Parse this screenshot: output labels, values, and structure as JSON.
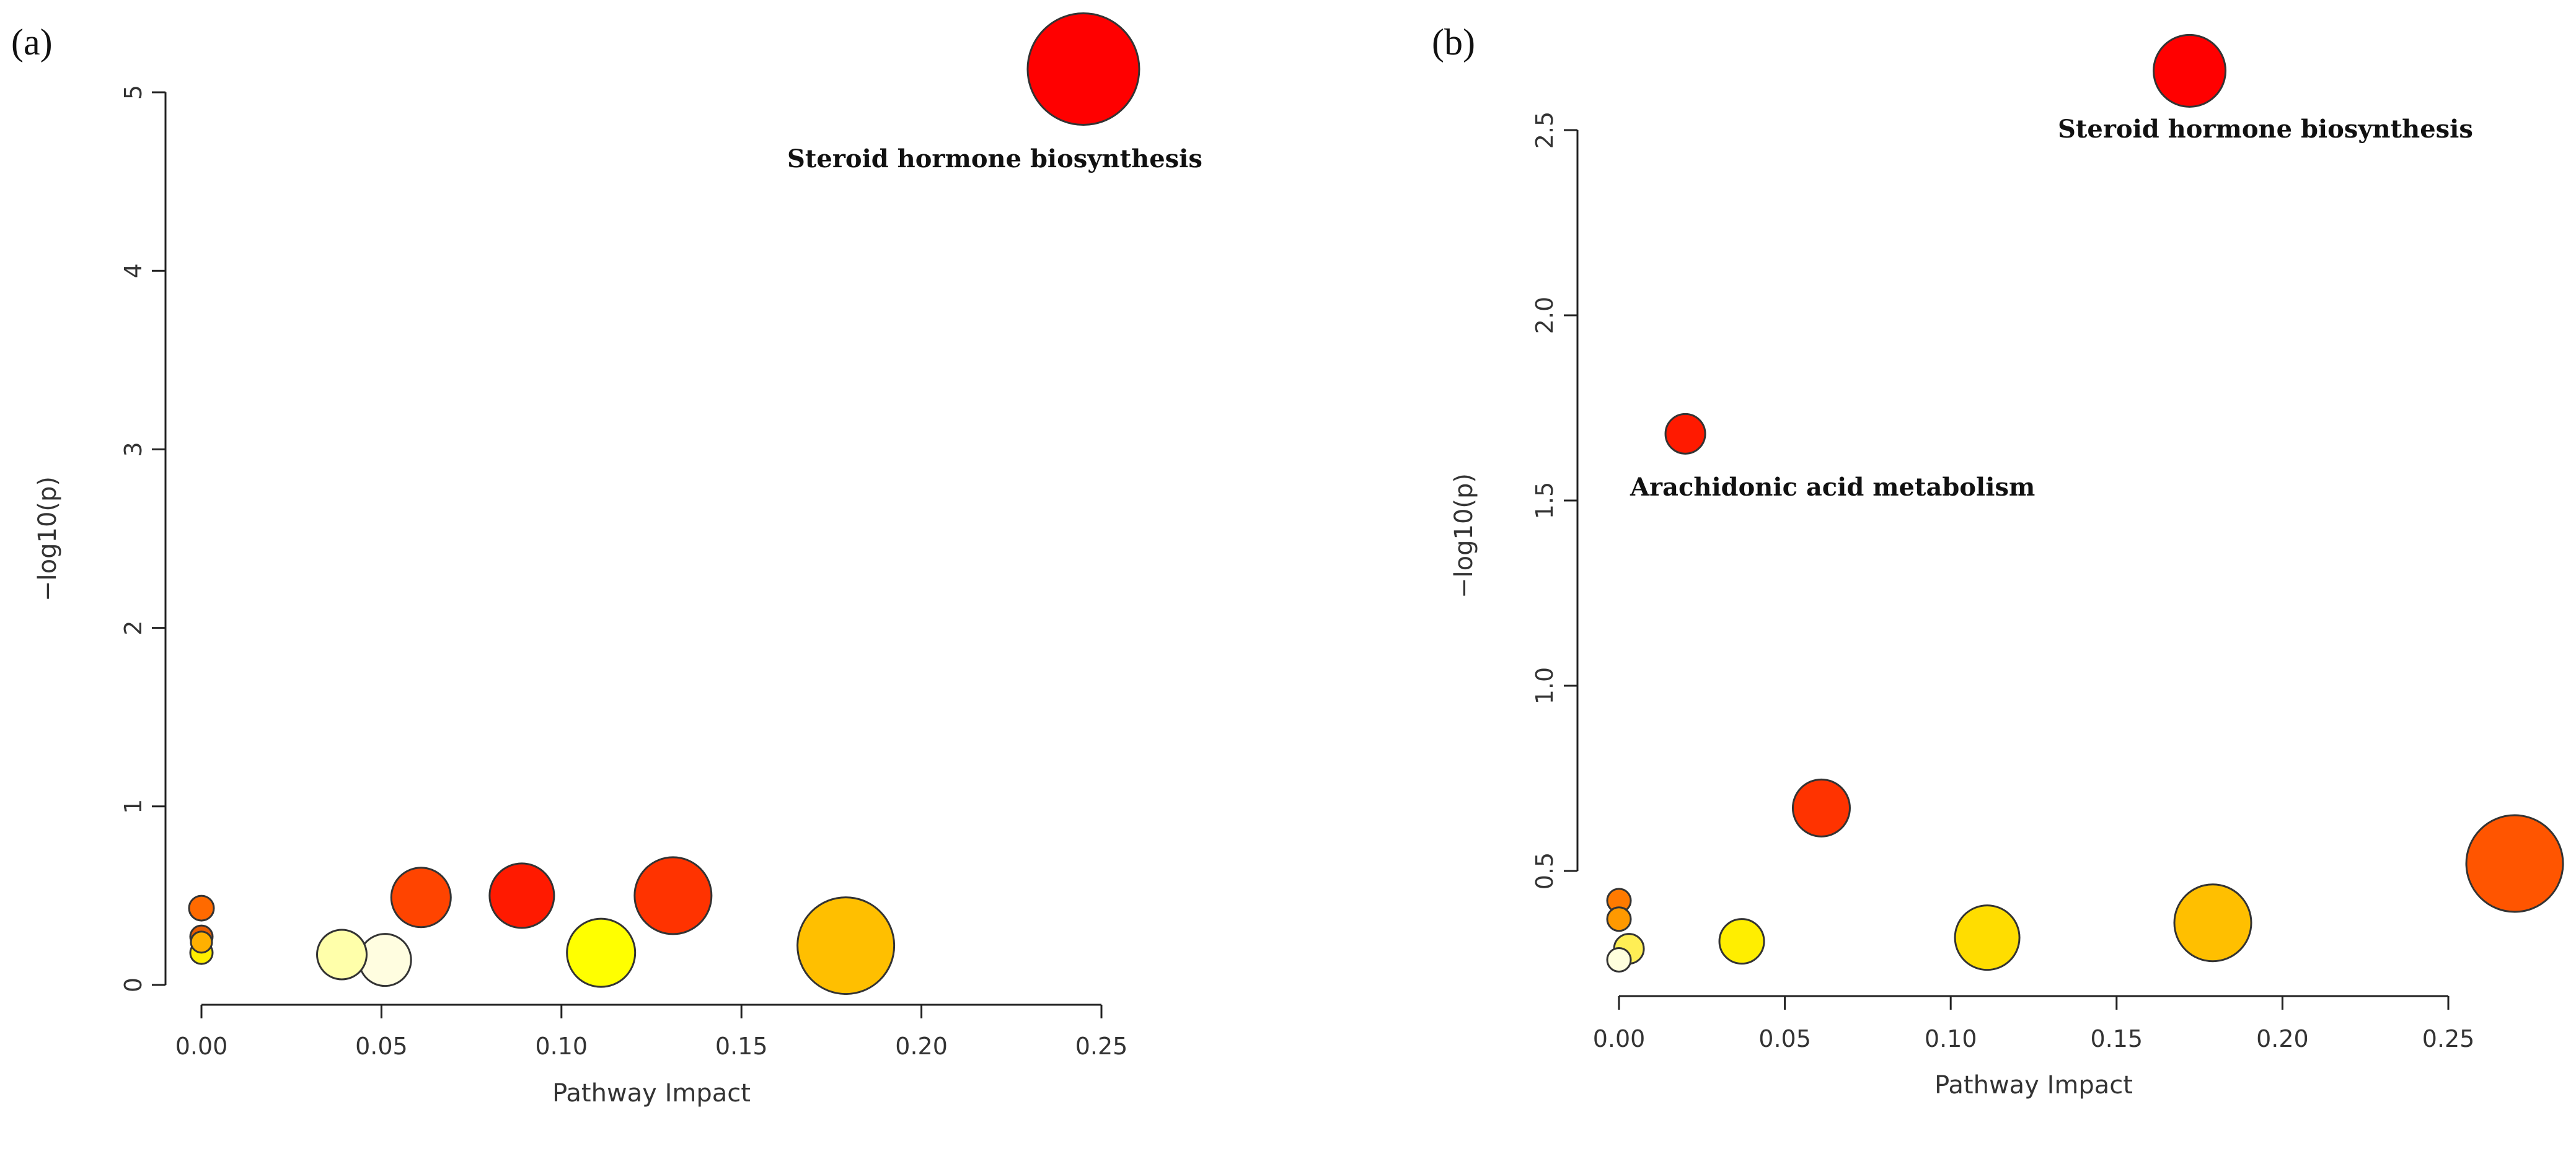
{
  "chart_data": [
    {
      "type": "scatter",
      "panel_label": "(a)",
      "xlabel": "Pathway Impact",
      "ylabel": "−log10(p)",
      "xlim": [
        0,
        0.25
      ],
      "ylim": [
        0,
        5
      ],
      "x_ticks": [
        0,
        0.05,
        0.1,
        0.15,
        0.2,
        0.25
      ],
      "x_tick_labels": [
        "0.00",
        "0.05",
        "0.10",
        "0.15",
        "0.20",
        "0.25"
      ],
      "y_ticks": [
        0,
        1,
        2,
        3,
        4,
        5
      ],
      "y_tick_labels": [
        "0",
        "1",
        "2",
        "3",
        "4",
        "5"
      ],
      "points": [
        {
          "x": 0.245,
          "y": 5.13,
          "size": 90,
          "color": "#ff0000",
          "label": "Steroid hormone biosynthesis"
        },
        {
          "x": 0.0,
          "y": 0.43,
          "size": 20,
          "color": "#ff6a00"
        },
        {
          "x": 0.0,
          "y": 0.27,
          "size": 18,
          "color": "#e65c00"
        },
        {
          "x": 0.0,
          "y": 0.24,
          "size": 17,
          "color": "#ffb000"
        },
        {
          "x": 0.0,
          "y": 0.18,
          "size": 18,
          "color": "#ffee00"
        },
        {
          "x": 0.039,
          "y": 0.17,
          "size": 40,
          "color": "#ffffaa"
        },
        {
          "x": 0.051,
          "y": 0.14,
          "size": 42,
          "color": "#fffde0"
        },
        {
          "x": 0.061,
          "y": 0.49,
          "size": 48,
          "color": "#ff4400"
        },
        {
          "x": 0.089,
          "y": 0.5,
          "size": 52,
          "color": "#ff1a00"
        },
        {
          "x": 0.111,
          "y": 0.18,
          "size": 55,
          "color": "#ffff00"
        },
        {
          "x": 0.131,
          "y": 0.5,
          "size": 62,
          "color": "#ff3300"
        },
        {
          "x": 0.179,
          "y": 0.22,
          "size": 78,
          "color": "#ffbf00"
        }
      ]
    },
    {
      "type": "scatter",
      "panel_label": "(b)",
      "xlabel": "Pathway Impact",
      "ylabel": "−log10(p)",
      "xlim": [
        0,
        0.25
      ],
      "ylim": [
        0.5,
        2.5
      ],
      "x_ticks": [
        0,
        0.05,
        0.1,
        0.15,
        0.2,
        0.25
      ],
      "x_tick_labels": [
        "0.00",
        "0.05",
        "0.10",
        "0.15",
        "0.20",
        "0.25"
      ],
      "y_ticks": [
        0.5,
        1.0,
        1.5,
        2.0,
        2.5
      ],
      "y_tick_labels": [
        "0.5",
        "1.0",
        "1.5",
        "2.0",
        "2.5"
      ],
      "points": [
        {
          "x": 0.172,
          "y": 2.66,
          "size": 58,
          "color": "#ff0000",
          "label": "Steroid hormone biosynthesis"
        },
        {
          "x": 0.02,
          "y": 1.68,
          "size": 32,
          "color": "#ff1a00",
          "label": "Arachidonic acid metabolism"
        },
        {
          "x": 0.061,
          "y": 0.67,
          "size": 46,
          "color": "#ff3300"
        },
        {
          "x": 0.27,
          "y": 0.52,
          "size": 78,
          "color": "#ff5500"
        },
        {
          "x": 0.0,
          "y": 0.42,
          "size": 19,
          "color": "#ff7a00"
        },
        {
          "x": 0.0,
          "y": 0.37,
          "size": 19,
          "color": "#ff9900"
        },
        {
          "x": 0.003,
          "y": 0.29,
          "size": 24,
          "color": "#ffee55"
        },
        {
          "x": 0.0,
          "y": 0.26,
          "size": 19,
          "color": "#ffffdd"
        },
        {
          "x": 0.037,
          "y": 0.31,
          "size": 36,
          "color": "#ffee00"
        },
        {
          "x": 0.111,
          "y": 0.32,
          "size": 52,
          "color": "#ffdd00"
        },
        {
          "x": 0.179,
          "y": 0.36,
          "size": 62,
          "color": "#ffbf00"
        }
      ]
    }
  ]
}
